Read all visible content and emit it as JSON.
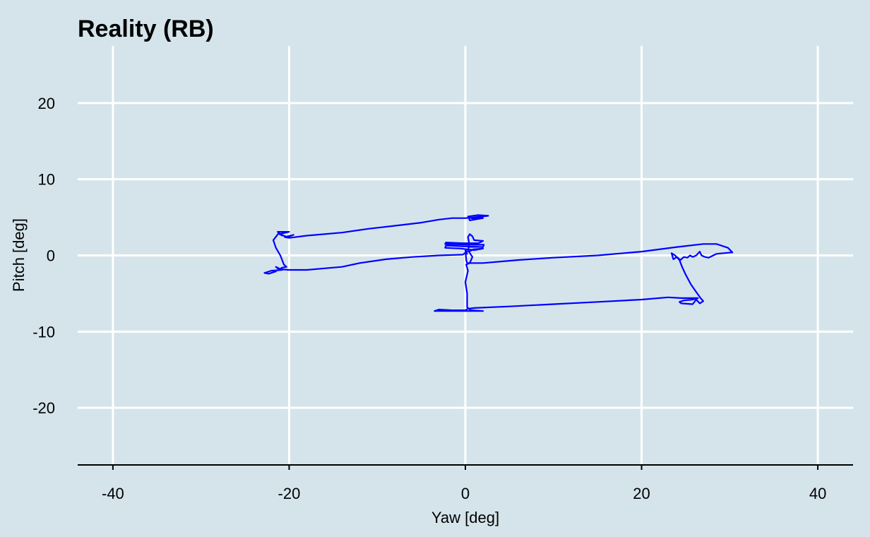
{
  "chart_data": {
    "type": "line",
    "title": "Reality (RB)",
    "xlabel": "Yaw [deg]",
    "ylabel": "Pitch [deg]",
    "xlim": [
      -44,
      44
    ],
    "ylim": [
      -27.5,
      27.5
    ],
    "xticks": [
      -40,
      -20,
      0,
      20,
      40
    ],
    "yticks": [
      20,
      10,
      0,
      -10,
      -20
    ],
    "grid": true,
    "background_color": "#d5e4eb",
    "grid_color": "#ffffff",
    "line_color": "#0000ff",
    "series": [
      {
        "name": "",
        "points": [
          [
            0.2,
            0.2
          ],
          [
            0.0,
            0.8
          ],
          [
            0.1,
            -0.6
          ],
          [
            0.2,
            -1.0
          ],
          [
            2.0,
            -1.0
          ],
          [
            6.0,
            -0.6
          ],
          [
            10.0,
            -0.3
          ],
          [
            15.0,
            0.0
          ],
          [
            20.0,
            0.5
          ],
          [
            24.0,
            1.1
          ],
          [
            27.0,
            1.5
          ],
          [
            28.5,
            1.5
          ],
          [
            29.8,
            1.0
          ],
          [
            30.3,
            0.4
          ],
          [
            29.3,
            0.3
          ],
          [
            28.5,
            0.2
          ],
          [
            27.6,
            -0.3
          ],
          [
            27.2,
            -0.2
          ],
          [
            26.8,
            0.0
          ],
          [
            26.6,
            0.5
          ],
          [
            26.2,
            0.0
          ],
          [
            25.8,
            -0.2
          ],
          [
            25.5,
            0.0
          ],
          [
            25.2,
            -0.3
          ],
          [
            24.8,
            -0.2
          ],
          [
            24.4,
            -0.6
          ],
          [
            24.0,
            -0.2
          ],
          [
            23.6,
            -0.5
          ],
          [
            23.4,
            0.3
          ],
          [
            23.8,
            0.0
          ],
          [
            24.3,
            -0.6
          ],
          [
            24.6,
            -1.5
          ],
          [
            25.0,
            -2.5
          ],
          [
            25.6,
            -3.8
          ],
          [
            26.2,
            -4.8
          ],
          [
            26.7,
            -5.6
          ],
          [
            27.0,
            -6.0
          ],
          [
            26.6,
            -6.3
          ],
          [
            26.2,
            -5.8
          ],
          [
            25.8,
            -6.4
          ],
          [
            24.5,
            -6.3
          ],
          [
            24.3,
            -6.1
          ],
          [
            24.8,
            -5.9
          ],
          [
            25.8,
            -5.8
          ],
          [
            26.4,
            -5.6
          ],
          [
            24.5,
            -5.6
          ],
          [
            23.0,
            -5.5
          ],
          [
            20.0,
            -5.8
          ],
          [
            15.0,
            -6.1
          ],
          [
            10.0,
            -6.4
          ],
          [
            5.0,
            -6.7
          ],
          [
            1.0,
            -6.9
          ],
          [
            0.3,
            -7.0
          ],
          [
            0.0,
            -7.2
          ],
          [
            -1.5,
            -7.2
          ],
          [
            -3.0,
            -7.1
          ],
          [
            -3.5,
            -7.3
          ],
          [
            -2.5,
            -7.3
          ],
          [
            -1.0,
            -7.3
          ],
          [
            0.5,
            -7.3
          ],
          [
            2.0,
            -7.3
          ],
          [
            0.6,
            -7.2
          ],
          [
            0.2,
            -6.8
          ],
          [
            0.2,
            -5.0
          ],
          [
            0.0,
            -3.5
          ],
          [
            0.3,
            -2.0
          ],
          [
            0.1,
            -1.2
          ],
          [
            0.5,
            -1.0
          ],
          [
            0.8,
            -0.2
          ],
          [
            0.4,
            0.5
          ],
          [
            0.9,
            0.8
          ],
          [
            2.0,
            0.9
          ],
          [
            1.0,
            0.7
          ],
          [
            -0.5,
            0.9
          ],
          [
            -2.3,
            1.0
          ],
          [
            -2.2,
            1.3
          ],
          [
            -0.2,
            1.2
          ],
          [
            2.0,
            1.1
          ],
          [
            2.1,
            1.4
          ],
          [
            0.5,
            1.4
          ],
          [
            -2.3,
            1.5
          ],
          [
            -2.2,
            1.7
          ],
          [
            -0.3,
            1.6
          ],
          [
            1.5,
            1.6
          ],
          [
            2.0,
            1.9
          ],
          [
            1.0,
            2.0
          ],
          [
            0.8,
            2.5
          ],
          [
            0.5,
            2.8
          ],
          [
            0.3,
            2.4
          ],
          [
            0.4,
            1.8
          ],
          [
            0.4,
            1.2
          ],
          [
            0.3,
            0.6
          ],
          [
            -0.3,
            0.1
          ],
          [
            -3.0,
            0.0
          ],
          [
            -6.0,
            -0.2
          ],
          [
            -9.0,
            -0.5
          ],
          [
            -12.0,
            -1.0
          ],
          [
            -14.0,
            -1.5
          ],
          [
            -16.0,
            -1.7
          ],
          [
            -18.0,
            -1.9
          ],
          [
            -20.0,
            -1.9
          ],
          [
            -21.2,
            -1.8
          ],
          [
            -21.5,
            -1.5
          ],
          [
            -20.8,
            -1.9
          ],
          [
            -22.0,
            -2.0
          ],
          [
            -22.8,
            -2.3
          ],
          [
            -22.3,
            -2.4
          ],
          [
            -21.5,
            -2.1
          ],
          [
            -20.8,
            -1.6
          ],
          [
            -20.3,
            -1.5
          ],
          [
            -20.6,
            -1.2
          ],
          [
            -21.0,
            0.0
          ],
          [
            -21.5,
            1.0
          ],
          [
            -21.8,
            2.0
          ],
          [
            -21.2,
            2.9
          ],
          [
            -20.8,
            2.6
          ],
          [
            -21.3,
            3.1
          ],
          [
            -20.0,
            3.1
          ],
          [
            -21.1,
            2.8
          ],
          [
            -20.2,
            2.4
          ],
          [
            -19.5,
            2.7
          ],
          [
            -20.5,
            2.4
          ],
          [
            -20.0,
            2.3
          ],
          [
            -18.0,
            2.6
          ],
          [
            -14.0,
            3.0
          ],
          [
            -11.0,
            3.5
          ],
          [
            -8.0,
            3.9
          ],
          [
            -5.0,
            4.3
          ],
          [
            -3.0,
            4.7
          ],
          [
            -1.5,
            4.9
          ],
          [
            0.0,
            4.9
          ],
          [
            1.2,
            5.0
          ],
          [
            2.6,
            5.2
          ],
          [
            1.4,
            5.3
          ],
          [
            0.3,
            5.1
          ],
          [
            0.9,
            4.8
          ],
          [
            2.0,
            4.9
          ],
          [
            0.5,
            4.6
          ],
          [
            0.4,
            4.9
          ],
          [
            1.6,
            5.1
          ]
        ]
      }
    ]
  }
}
